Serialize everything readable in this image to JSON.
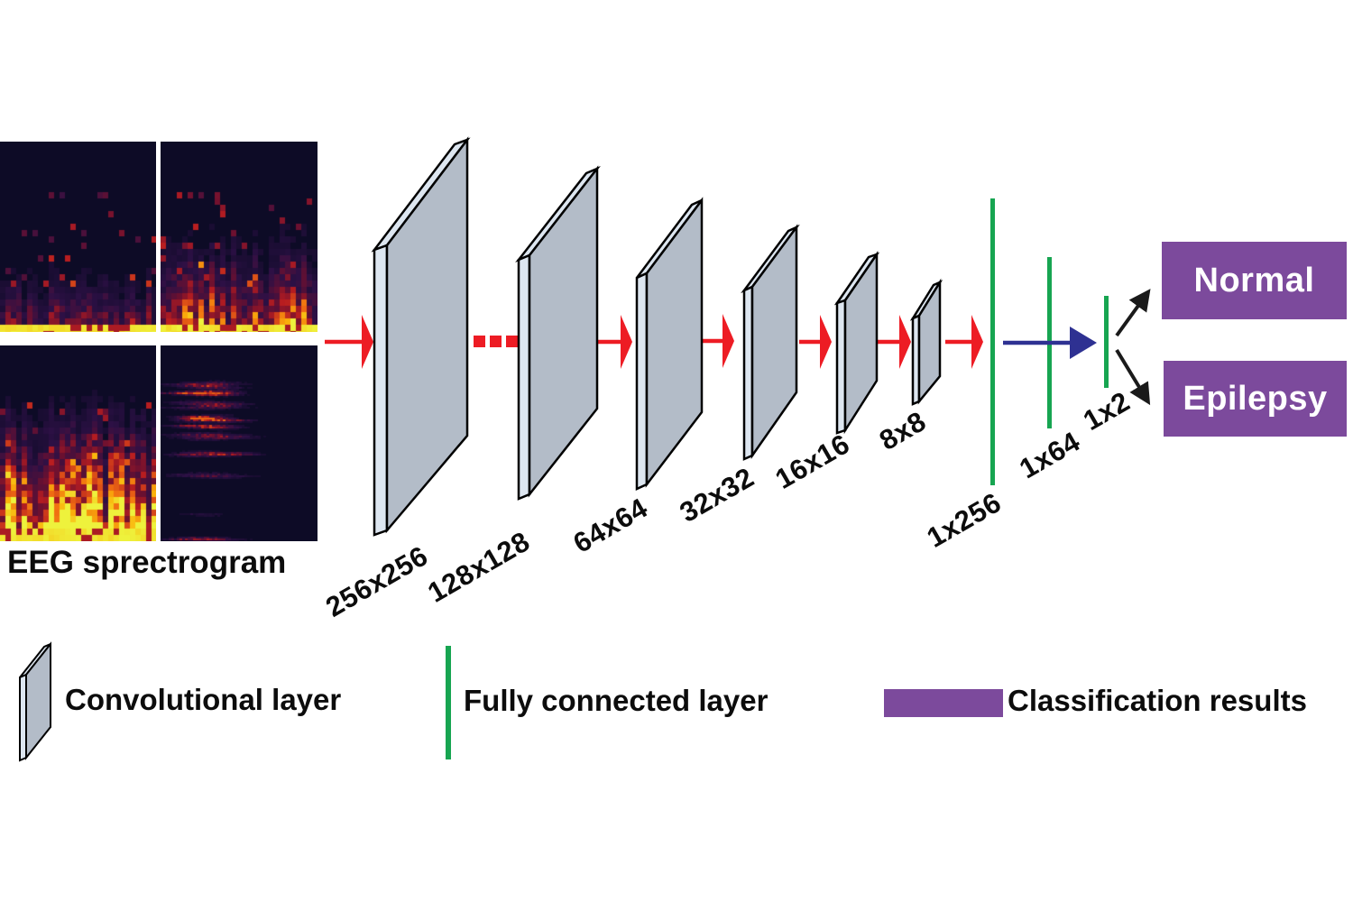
{
  "figure": {
    "title_label": "EEG sprectrogram",
    "conv_layers": [
      "256x256",
      "128x128",
      "64x64",
      "32x32",
      "16x16",
      "8x8"
    ],
    "fc_layers": [
      "1x256",
      "1x64",
      "1x2"
    ],
    "classes": [
      "Normal",
      "Epilepsy"
    ],
    "legend": {
      "conv": "Convolutional layer",
      "fc": "Fully connected layer",
      "class": "Classification results"
    },
    "colors": {
      "conv_face": "#b3bcc8",
      "conv_edge": "#dde6f0",
      "fc_line": "#17a551",
      "arrow_red": "#ed1c24",
      "arrow_blue": "#2e3192",
      "class_box": "#7c4a9c",
      "class_text": "#ffffff",
      "label_text": "#0c0c0c",
      "spectrogram_bg": "#0d0b26"
    },
    "eeg_panels": [
      {
        "pattern": "flame",
        "intensity": 0.5,
        "seed": 7
      },
      {
        "pattern": "flame",
        "intensity": 0.8,
        "seed": 23
      },
      {
        "pattern": "flame",
        "intensity": 1.15,
        "seed": 41
      },
      {
        "pattern": "streaks",
        "intensity": 0.7,
        "seed": 59
      }
    ]
  }
}
